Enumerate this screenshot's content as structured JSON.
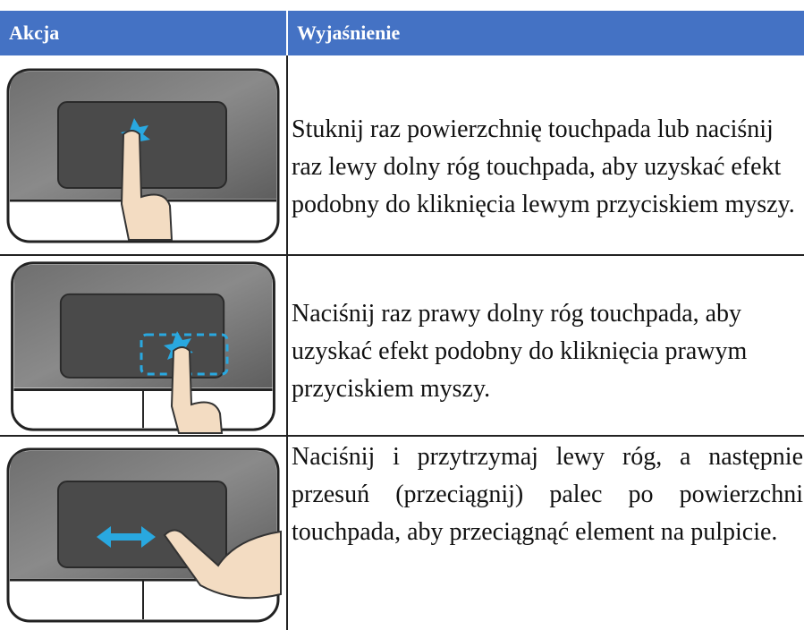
{
  "table": {
    "header": [
      "Akcja",
      "Wyjaśnienie"
    ],
    "rows": [
      "Stuknij raz powierzchnię touchpada lub naciśnij raz lewy dolny róg touchpada, aby uzyskać efekt podobny do kliknięcia lewym przyciskiem myszy.",
      "Naciśnij raz prawy dolny róg touchpada, aby uzyskać efekt podobny do kliknięcia prawym przyciskiem myszy.",
      "Naciśnij i przytrzymaj lewy róg, a następnie przesuń (przeciągnij) palec po powierzchni touchpada, aby przeciągnąć element na pulpicie."
    ]
  }
}
